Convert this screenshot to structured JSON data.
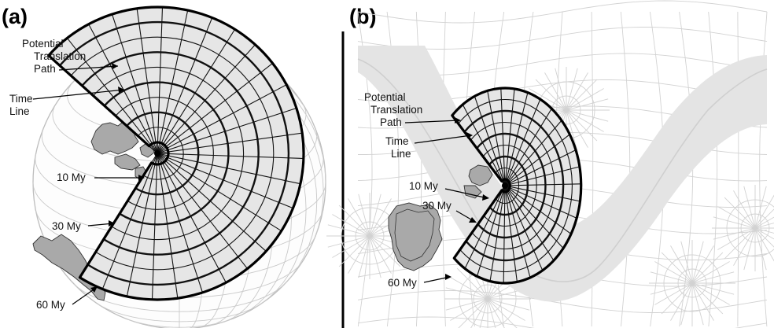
{
  "figure": {
    "panel_a": {
      "label": "(a)",
      "annotations": [
        {
          "key": "path1",
          "text": "Potential"
        },
        {
          "key": "path2",
          "text": "Translation"
        },
        {
          "key": "path3",
          "text": "Path"
        },
        {
          "key": "time1",
          "text": "Time"
        },
        {
          "key": "time2",
          "text": "Line"
        },
        {
          "key": "my10",
          "text": "10 My"
        },
        {
          "key": "my30",
          "text": "30 My"
        },
        {
          "key": "my60",
          "text": "60 My"
        }
      ]
    },
    "panel_b": {
      "label": "(b)",
      "annotations": [
        {
          "key": "path1",
          "text": "Potential"
        },
        {
          "key": "path2",
          "text": "Translation"
        },
        {
          "key": "path3",
          "text": "Path"
        },
        {
          "key": "time1",
          "text": "Time"
        },
        {
          "key": "time2",
          "text": "Line"
        },
        {
          "key": "my10",
          "text": "10 My"
        },
        {
          "key": "my30",
          "text": "30 My"
        },
        {
          "key": "my60",
          "text": "60 My"
        }
      ]
    },
    "colors": {
      "sector_fill": "#e6e6e6",
      "band_fill": "#e4e4e4",
      "continent_fill": "#a9a9a9",
      "graticule": "#c9c9c9",
      "ink": "#111111"
    }
  }
}
